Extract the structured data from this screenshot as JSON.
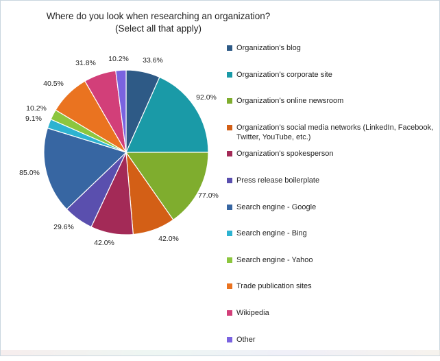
{
  "chart_data": {
    "type": "pie",
    "title": "Where do you look when researching an organization?",
    "subtitle": "(Select all that apply)",
    "categories": [
      "Organization's blog",
      "Organization’s corporate site",
      "Organization’s online newsroom",
      "Organization’s social media networks (LinkedIn, Facebook, Twitter, YouTube, etc.)",
      "Organization's spokesperson",
      "Press release boilerplate",
      "Search engine - Google",
      "Search engine - Bing",
      "Search engine - Yahoo",
      "Trade publication sites",
      "Wikipedia",
      "Other"
    ],
    "values": [
      33.6,
      92.0,
      77.0,
      42.0,
      42.0,
      29.6,
      85.0,
      9.1,
      10.2,
      40.5,
      31.8,
      10.2
    ],
    "labels": [
      "33.6%",
      "92.0%",
      "77.0%",
      "42.0%",
      "42.0%",
      "29.6%",
      "85.0%",
      "9.1%",
      "10.2%",
      "40.5%",
      "31.8%",
      "10.2%"
    ],
    "colors": [
      "#2e5a86",
      "#1a9aa7",
      "#7fad2e",
      "#d35f16",
      "#a32a57",
      "#5a4fae",
      "#3766a2",
      "#2db3d1",
      "#8cc63e",
      "#ea7320",
      "#d23f79",
      "#7a63e0"
    ],
    "legend_position": "right"
  }
}
